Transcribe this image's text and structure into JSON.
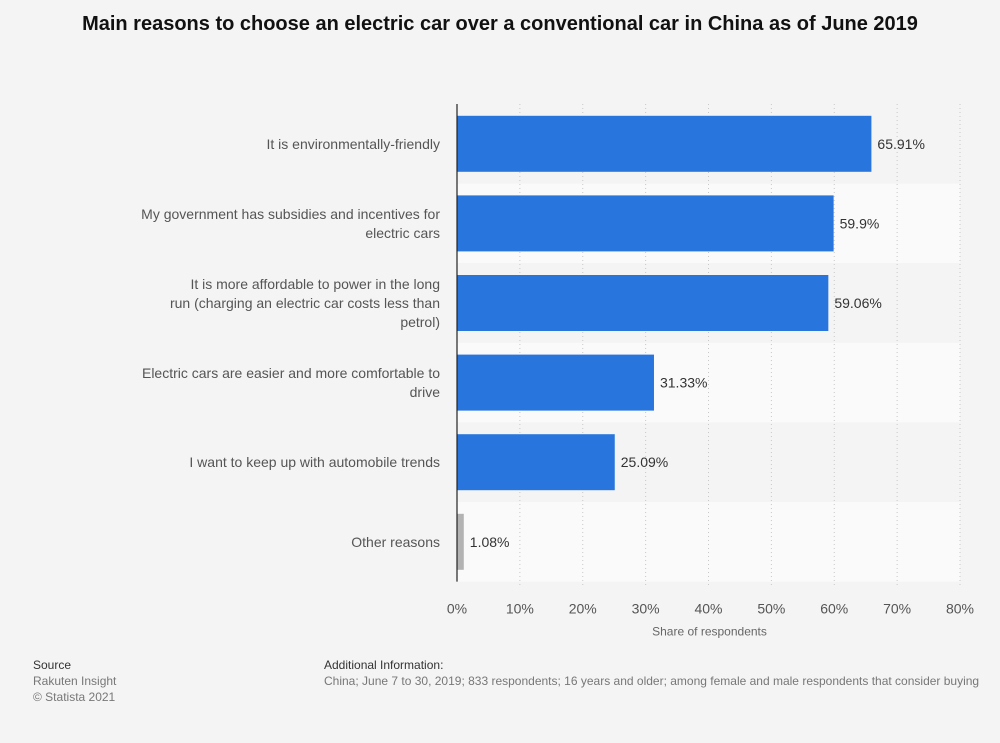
{
  "chart_data": {
    "type": "bar",
    "orientation": "horizontal",
    "title": "Main reasons to choose an electric car over a conventional car in China as of June 2019",
    "categories": [
      [
        "It is environmentally-friendly"
      ],
      [
        "My government has subsidies and incentives for",
        "electric cars"
      ],
      [
        "It is more affordable to power in the long",
        "run (charging an electric car costs less than",
        "petrol)"
      ],
      [
        "Electric cars are easier and more comfortable to",
        "drive"
      ],
      [
        "I want to keep up with automobile trends"
      ],
      [
        "Other reasons"
      ]
    ],
    "values": [
      65.91,
      59.9,
      59.06,
      31.33,
      25.09,
      1.08
    ],
    "value_labels": [
      "65.91%",
      "59.9%",
      "59.06%",
      "31.33%",
      "25.09%",
      "1.08%"
    ],
    "bar_colors": [
      "#2876dd",
      "#2876dd",
      "#2876dd",
      "#2876dd",
      "#2876dd",
      "#b3b3b3"
    ],
    "xlim": [
      0,
      80
    ],
    "xticks": [
      0,
      10,
      20,
      30,
      40,
      50,
      60,
      70,
      80
    ],
    "xtick_labels": [
      "0%",
      "10%",
      "20%",
      "30%",
      "40%",
      "50%",
      "60%",
      "70%",
      "80%"
    ],
    "xlabel": "Share of respondents",
    "grid": true
  },
  "footer": {
    "source_heading": "Source",
    "source_name": "Rakuten Insight",
    "copyright": "© Statista 2021",
    "info_heading": "Additional Information:",
    "info_text": "China; June 7 to 30, 2019; 833 respondents; 16 years and older; among female and male respondents that consider buying"
  }
}
